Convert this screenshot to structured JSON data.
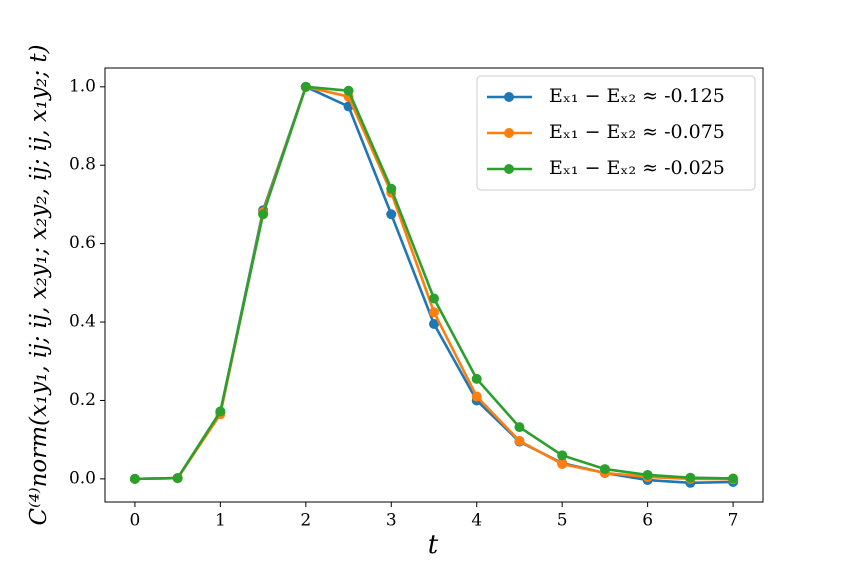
{
  "chart_data": {
    "type": "line",
    "x": [
      0,
      0.5,
      1,
      1.5,
      2,
      2.5,
      3,
      3.5,
      4,
      4.5,
      5,
      5.5,
      6,
      6.5,
      7
    ],
    "series": [
      {
        "name": "Eₓ₁ − Eₓ₂ ≈ -0.125",
        "color": "#1f77b4",
        "values": [
          0,
          0.002,
          0.17,
          0.685,
          1.0,
          0.95,
          0.675,
          0.395,
          0.2,
          0.095,
          0.04,
          0.015,
          -0.003,
          -0.01,
          -0.008
        ]
      },
      {
        "name": "Eₓ₁ − Eₓ₂ ≈ -0.075",
        "color": "#ff7f0e",
        "values": [
          0,
          0.002,
          0.165,
          0.68,
          1.0,
          0.975,
          0.73,
          0.425,
          0.21,
          0.097,
          0.038,
          0.015,
          0.005,
          0.0,
          -0.001
        ]
      },
      {
        "name": "Eₓ₁ − Eₓ₂ ≈ -0.025",
        "color": "#2ca02c",
        "values": [
          0,
          0.002,
          0.172,
          0.675,
          1.0,
          0.99,
          0.74,
          0.46,
          0.255,
          0.132,
          0.06,
          0.025,
          0.01,
          0.003,
          0.001
        ]
      }
    ],
    "x_label": "t",
    "y_label": "C⁽⁴⁾norm(x₁y₁, ij; ij, x₂y₁; x₂y₂, ij; ij, x₁y₂; t)",
    "xlim": [
      -0.35,
      7.35
    ],
    "ylim": [
      -0.059,
      1.048
    ],
    "xticks": [
      0,
      1,
      2,
      3,
      4,
      5,
      6,
      7
    ],
    "yticks": [
      {
        "value": 0,
        "label": "0.0"
      },
      0.2,
      0.4,
      0.6,
      0.8,
      {
        "value": 1,
        "label": "1.0"
      }
    ],
    "grid": false,
    "legend": "upper right"
  }
}
